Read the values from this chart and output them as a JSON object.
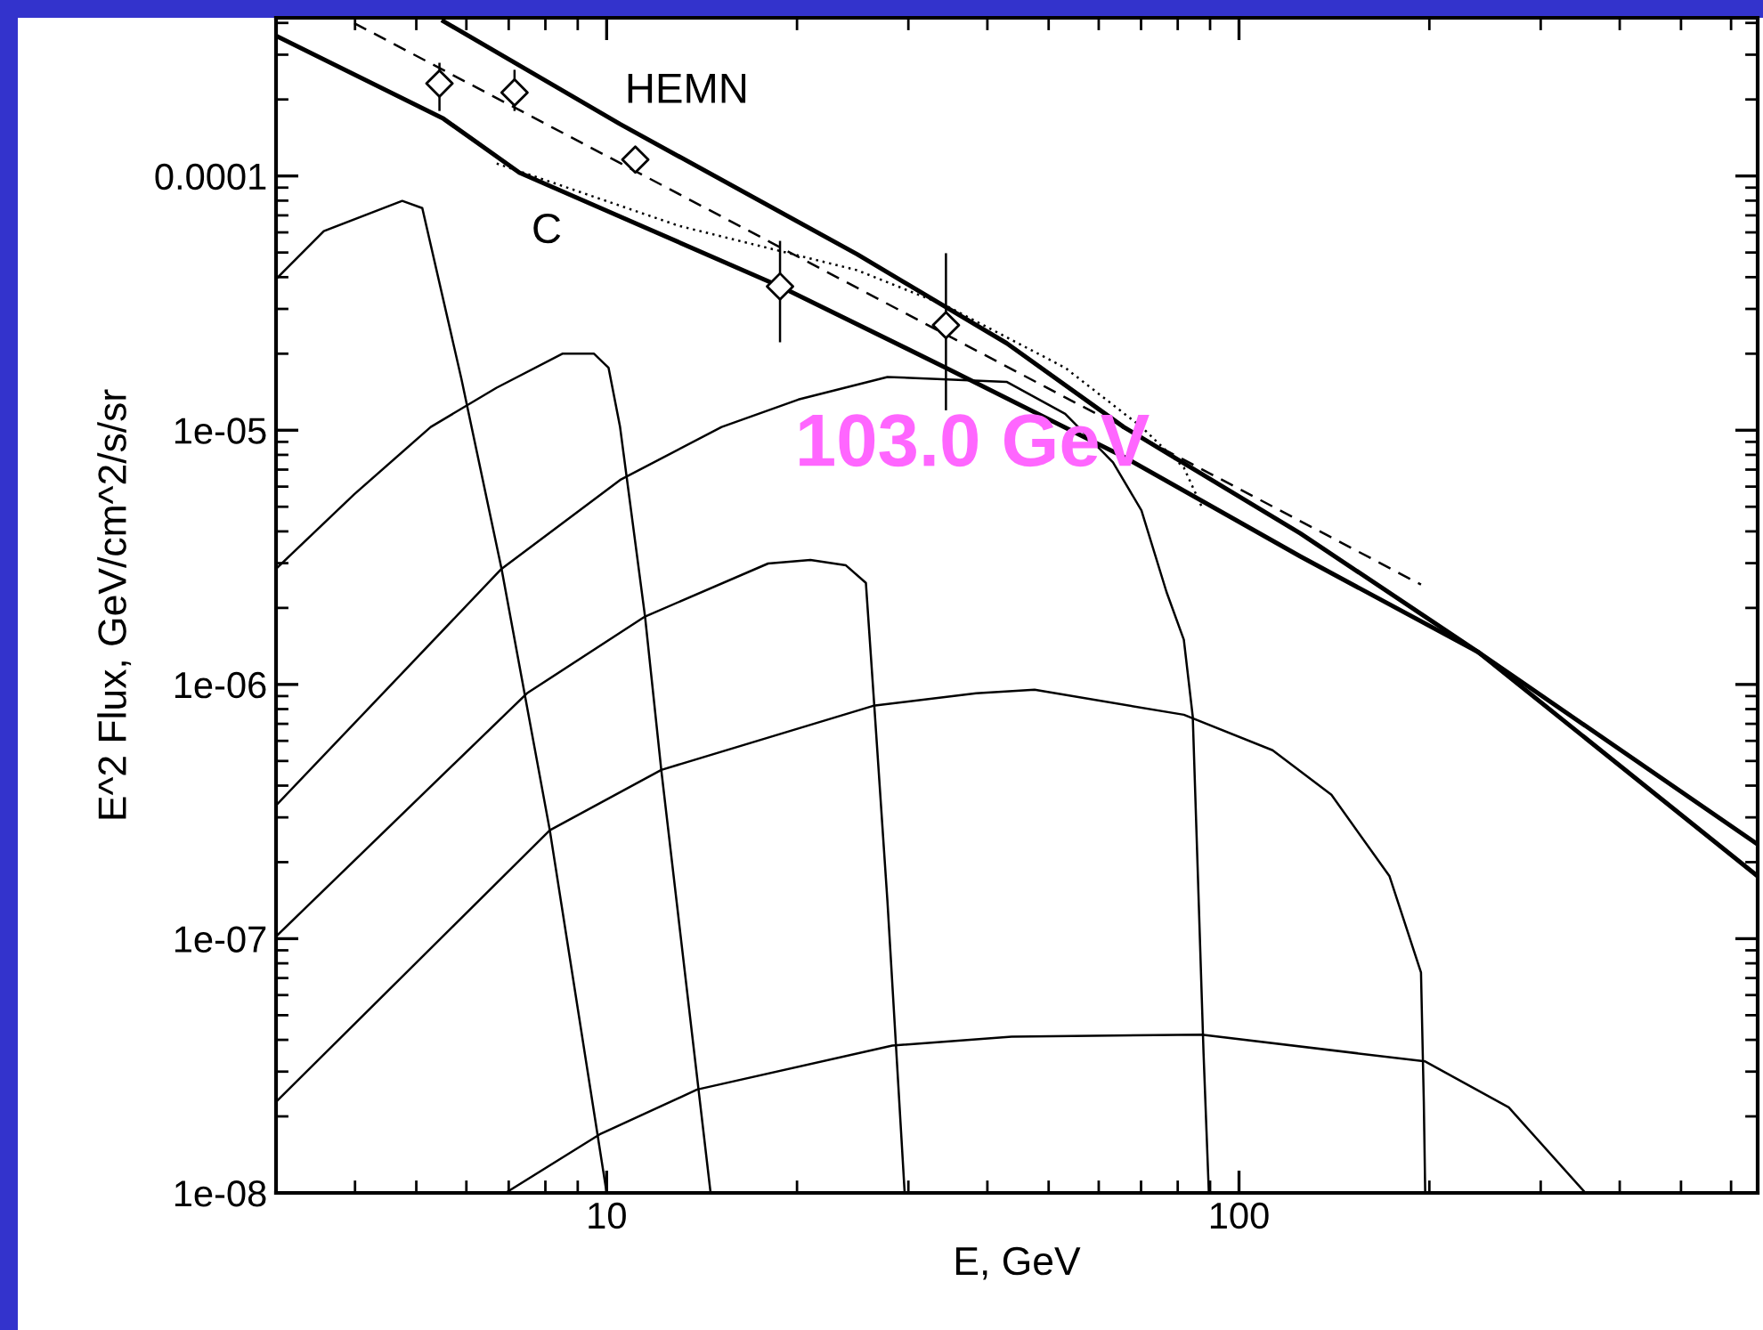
{
  "chart_data": {
    "type": "line",
    "xlabel": "E, GeV",
    "ylabel": "E^2 Flux, GeV/cm^2/s/sr",
    "log": "xy",
    "xlim": [
      3,
      661
    ],
    "ylim": [
      1e-08,
      0.000419
    ],
    "xticks": [
      10,
      100
    ],
    "yticks": [
      {
        "value": 0.0001,
        "label": "0.0001"
      },
      {
        "value": 1e-05,
        "label": "1e-05"
      },
      {
        "value": 1e-06,
        "label": "1e-06"
      },
      {
        "value": 1e-07,
        "label": "1e-07"
      },
      {
        "value": 1e-08,
        "label": "1e-08"
      }
    ],
    "series": [
      {
        "name": "C",
        "color": "#000000",
        "line_style": "solid",
        "x": [
          3,
          5.52,
          7.28,
          18.8,
          34.4,
          65.7,
          125,
          239,
          661
        ],
        "values": [
          0.000356,
          0.000168,
          0.000103,
          3.68e-05,
          1.76e-05,
          7.86e-06,
          3.19e-06,
          1.34e-06,
          1.76e-07
        ]
      },
      {
        "name": "HEMN",
        "color": "#000000",
        "line_style": "solid",
        "x": [
          5.52,
          10.5,
          24.9,
          42.9,
          65.7,
          125,
          239,
          661
        ],
        "values": [
          0.000406,
          0.00016,
          4.92e-05,
          2.2e-05,
          1.03e-05,
          3.93e-06,
          1.34e-06,
          2.35e-07
        ]
      },
      {
        "color": "#000000",
        "line_style": "dashed",
        "x": [
          3.99,
          194
        ],
        "values": [
          0.000399,
          2.47e-06
        ]
      },
      {
        "color": "#000000",
        "line_style": "dotted",
        "x": [
          6.7,
          13.0,
          24.9,
          34.4,
          53.1,
          70.1,
          81.8,
          87.3
        ],
        "values": [
          0.000112,
          6.37e-05,
          4.26e-05,
          3.09e-05,
          1.76e-05,
          1.03e-05,
          7.13e-06,
          5e-06
        ]
      },
      {
        "color": "#000000",
        "line_style": "solid",
        "x": [
          3,
          3.57,
          4.75,
          5.11,
          5.89,
          6.82,
          8.13,
          10
        ],
        "values": [
          3.93e-05,
          6.07e-05,
          7.98e-05,
          7.48e-05,
          1.6e-05,
          2.85e-06,
          2.67e-07,
          1e-08
        ]
      },
      {
        "color": "#000000",
        "line_style": "solid",
        "x": [
          3,
          3.99,
          5.27,
          6.7,
          8.51,
          9.55,
          10.07,
          10.5,
          11.5,
          12.2,
          14.6
        ],
        "values": [
          2.85e-06,
          5.6e-06,
          1.03e-05,
          1.47e-05,
          2e-05,
          2e-05,
          1.76e-05,
          1.03e-05,
          1.85e-06,
          4.61e-07,
          1e-08
        ]
      },
      {
        "color": "#000000",
        "line_style": "solid",
        "x": [
          3,
          6.82,
          10.5,
          15.2,
          20.1,
          27.8,
          42.9,
          53.1,
          63.2,
          70.1,
          76.8,
          81.8,
          84.5,
          86.1,
          87.9,
          89.6
        ],
        "values": [
          3.34e-07,
          2.85e-06,
          6.37e-06,
          1.03e-05,
          1.32e-05,
          1.62e-05,
          1.55e-05,
          1.16e-05,
          7.48e-06,
          4.84e-06,
          2.31e-06,
          1.5e-06,
          7.48e-07,
          1.76e-07,
          3.51e-08,
          1e-08
        ]
      },
      {
        "color": "#000000",
        "line_style": "solid",
        "x": [
          3,
          7.48,
          11.5,
          18.0,
          21.0,
          23.9,
          25.7,
          26.5,
          27.8,
          29.6
        ],
        "values": [
          1.02e-07,
          9.23e-07,
          1.85e-06,
          2.99e-06,
          3.09e-06,
          2.94e-06,
          2.51e-06,
          8.24e-07,
          1.4e-07,
          1e-08
        ]
      },
      {
        "color": "#000000",
        "line_style": "solid",
        "x": [
          3,
          8.13,
          12.2,
          26.4,
          38.4,
          47.5,
          81.8,
          113,
          140,
          173,
          194,
          196,
          197
        ],
        "values": [
          2.28e-08,
          2.67e-07,
          4.61e-07,
          8.24e-07,
          9.23e-07,
          9.53e-07,
          7.6e-07,
          5.51e-07,
          3.68e-07,
          1.76e-07,
          7.36e-08,
          2.28e-08,
          1e-08
        ]
      },
      {
        "color": "#000000",
        "line_style": "solid",
        "x": [
          6.92,
          9.75,
          13.9,
          28.3,
          43.7,
          87.3,
          197,
          267,
          353
        ],
        "values": [
          1e-08,
          1.7e-08,
          2.55e-08,
          3.8e-08,
          4.12e-08,
          4.19e-08,
          3.29e-08,
          2.17e-08,
          1e-08
        ]
      },
      {
        "type": "scatter",
        "color": "#000000",
        "marker": "diamond",
        "x": [
          5.44,
          7.15,
          11.1,
          18.8,
          34.4
        ],
        "values": [
          0.000231,
          0.000213,
          0.000116,
          3.68e-05,
          2.59e-05
        ],
        "errors": [
          [
            0.000182,
            0.000276
          ],
          [
            0.000182,
            0.000259
          ],
          null,
          [
            2.24e-05,
            5.5e-05
          ],
          [
            1.21e-05,
            4.92e-05
          ]
        ]
      }
    ],
    "annotations": [
      "103.0 GeV"
    ]
  }
}
